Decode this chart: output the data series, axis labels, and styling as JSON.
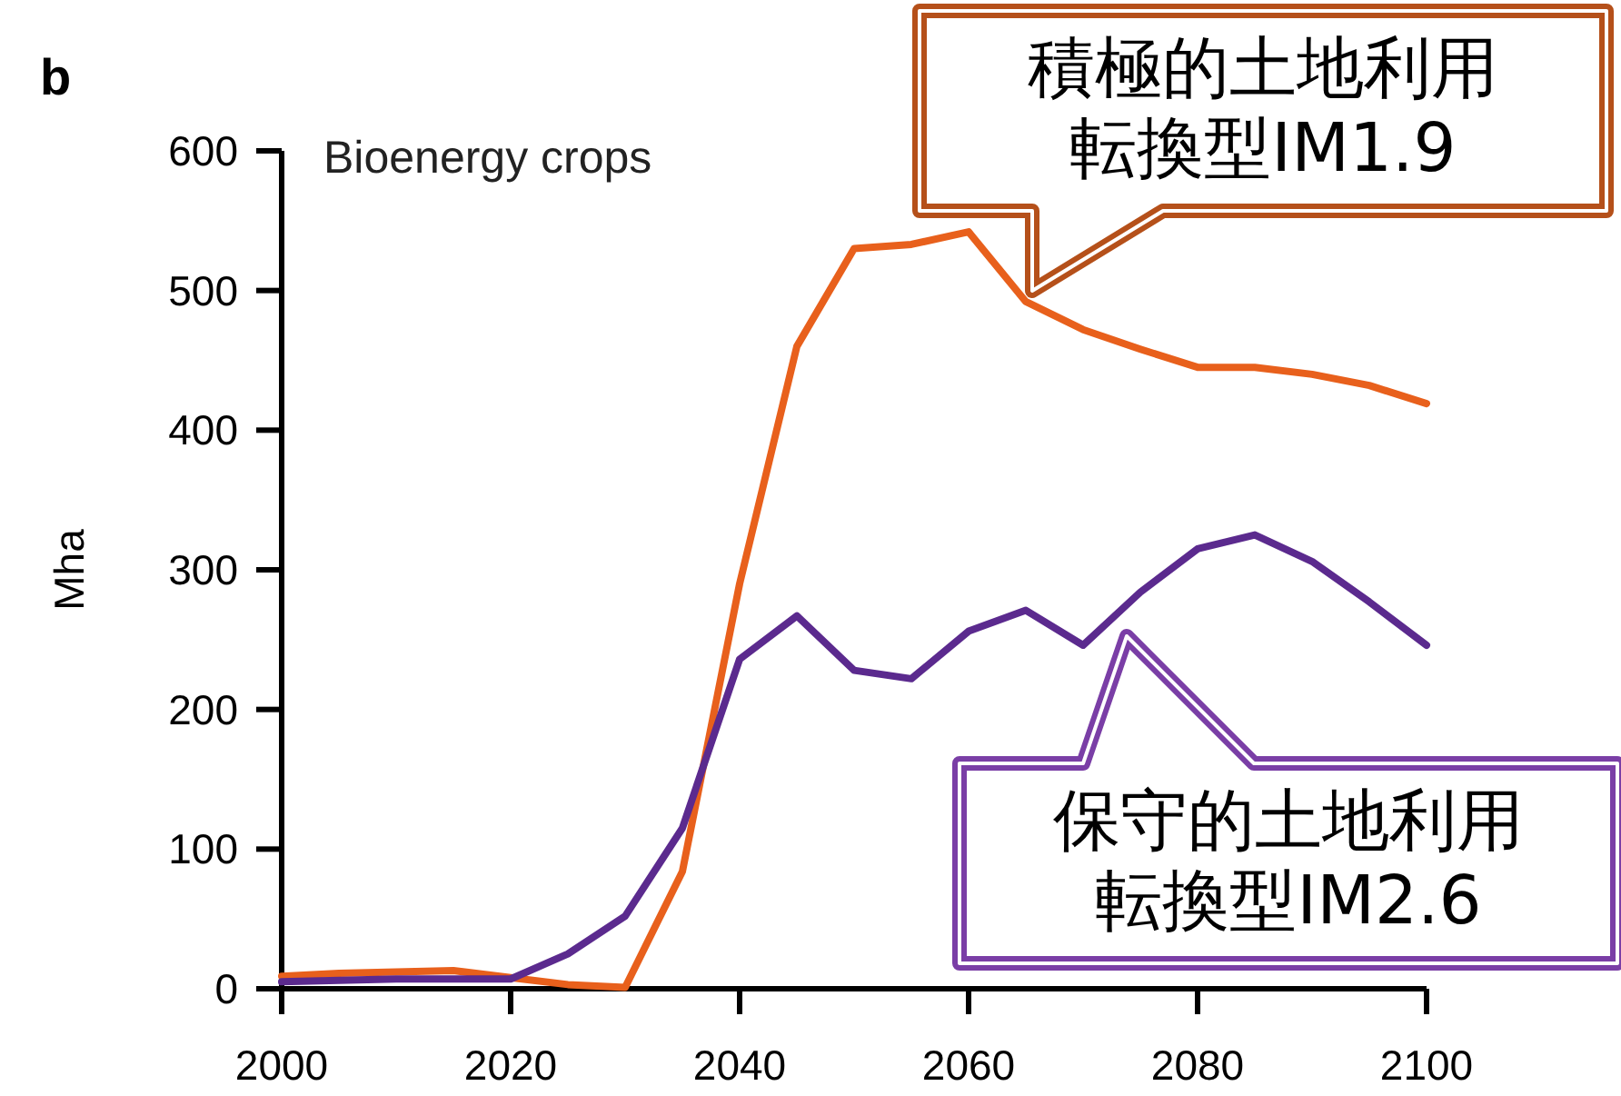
{
  "chart_data": {
    "type": "line",
    "title": "Bioenergy crops",
    "ylabel": "Mha",
    "x": [
      2000,
      2005,
      2010,
      2015,
      2020,
      2025,
      2030,
      2035,
      2040,
      2045,
      2050,
      2055,
      2060,
      2065,
      2070,
      2075,
      2080,
      2085,
      2090,
      2095,
      2100
    ],
    "series": [
      {
        "name": "積極的土地利用転換型IM1.9",
        "color": "#e8601c",
        "values": [
          9,
          11,
          12,
          13,
          8,
          3,
          1,
          84,
          290,
          460,
          530,
          533,
          542,
          492,
          472,
          458,
          445,
          445,
          440,
          432,
          419
        ]
      },
      {
        "name": "保守的土地利用転換型IM2.6",
        "color": "#5b2a8e",
        "values": [
          5,
          6,
          7,
          7,
          7,
          25,
          52,
          115,
          236,
          267,
          228,
          222,
          256,
          271,
          246,
          284,
          315,
          325,
          306,
          277,
          246
        ]
      }
    ],
    "xlim": [
      2000,
      2100
    ],
    "xticks": [
      2000,
      2020,
      2040,
      2060,
      2080,
      2100
    ],
    "ylim": [
      0,
      600
    ],
    "yticks": [
      0,
      100,
      200,
      300,
      400,
      500,
      600
    ],
    "annotations": [
      "b"
    ],
    "grid": false,
    "marker": "none",
    "line_style": "solid"
  }
}
